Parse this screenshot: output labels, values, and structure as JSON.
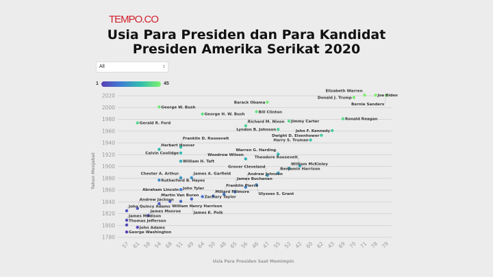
{
  "logo": {
    "text": "TEMPO.CO",
    "color": "#d0202a"
  },
  "filter": {
    "selected": "All"
  },
  "legend": {
    "min": "1",
    "max": "45",
    "colors": [
      "#5a3fb5",
      "#3f7fd4",
      "#33bfae",
      "#7ef26f"
    ]
  },
  "chart_data": {
    "type": "scatter",
    "title": "Usia Para Presiden dan Para Kandidat Presiden Amerika Serikat 2020",
    "title_lines": [
      "Usia Para Presiden dan Para Kandidat",
      "Presiden Amerika Serikat 2020"
    ],
    "xlabel": "Usia Para Presiden Saat Memimpin",
    "ylabel": "Tahun Menjabat",
    "x_categories": [
      "57",
      "61",
      "58",
      "54",
      "68",
      "51",
      "49",
      "64",
      "50",
      "48",
      "65",
      "56",
      "46",
      "47",
      "55",
      "52",
      "42",
      "60",
      "62",
      "43",
      "69",
      "70",
      "71",
      "78",
      "79"
    ],
    "y_ticks": [
      1780,
      1800,
      1820,
      1840,
      1860,
      1880,
      1900,
      1920,
      1940,
      1960,
      1980,
      2000,
      2020
    ],
    "ylim": [
      1780,
      2020
    ],
    "grid": true,
    "color_by": "order (1-45)",
    "points": [
      {
        "name": "George Washington",
        "year": 1789,
        "age": "57",
        "order": 1
      },
      {
        "name": "John Adams",
        "year": 1797,
        "age": "61",
        "order": 2
      },
      {
        "name": "Thomas Jefferson",
        "year": 1801,
        "age": "57",
        "order": 3
      },
      {
        "name": "James Madison",
        "year": 1809,
        "age": "57",
        "order": 4
      },
      {
        "name": "James Monroe",
        "year": 1817,
        "age": "58",
        "order": 5
      },
      {
        "name": "John Quincy Adams",
        "year": 1825,
        "age": "57",
        "order": 6
      },
      {
        "name": "Andrew Jackson",
        "year": 1829,
        "age": "61",
        "order": 7
      },
      {
        "name": "Martin Van Buren",
        "year": 1837,
        "age": "54",
        "order": 8
      },
      {
        "name": "William Henry Harrison",
        "year": 1841,
        "age": "68",
        "order": 9
      },
      {
        "name": "John Tyler",
        "year": 1841,
        "age": "51",
        "order": 10
      },
      {
        "name": "James K. Polk",
        "year": 1845,
        "age": "49",
        "order": 11
      },
      {
        "name": "Zachary Taylor",
        "year": 1849,
        "age": "64",
        "order": 12
      },
      {
        "name": "Millard Fillmore",
        "year": 1850,
        "age": "50",
        "order": 13
      },
      {
        "name": "Franklin Pierce",
        "year": 1853,
        "age": "48",
        "order": 14
      },
      {
        "name": "James Buchanan",
        "year": 1857,
        "age": "65",
        "order": 15
      },
      {
        "name": "Abraham Lincoln",
        "year": 1861,
        "age": "51",
        "order": 16
      },
      {
        "name": "Andrew Johnson",
        "year": 1865,
        "age": "56",
        "order": 17
      },
      {
        "name": "Ulysses S. Grant",
        "year": 1869,
        "age": "46",
        "order": 18
      },
      {
        "name": "Rutherford B. Hayes",
        "year": 1877,
        "age": "54",
        "order": 19
      },
      {
        "name": "James A. Garfield",
        "year": 1881,
        "age": "49",
        "order": 20
      },
      {
        "name": "Chester A. Arthur",
        "year": 1881,
        "age": "51",
        "order": 21
      },
      {
        "name": "Grover Cleveland",
        "year": 1885,
        "age": "47",
        "order": 22
      },
      {
        "name": "Benjamin Harrison",
        "year": 1889,
        "age": "55",
        "order": 23
      },
      {
        "name": "William McKinley",
        "year": 1897,
        "age": "52",
        "order": 24
      },
      {
        "name": "Theodore Roosevelt",
        "year": 1901,
        "age": "42",
        "order": 25
      },
      {
        "name": "William H. Taft",
        "year": 1909,
        "age": "51",
        "order": 26
      },
      {
        "name": "Woodrow Wilson",
        "year": 1913,
        "age": "56",
        "order": 27
      },
      {
        "name": "Warren G. Harding",
        "year": 1921,
        "age": "55",
        "order": 28
      },
      {
        "name": "Calvin Coolidge",
        "year": 1923,
        "age": "51",
        "order": 29
      },
      {
        "name": "Herbert Hoover",
        "year": 1929,
        "age": "54",
        "order": 30
      },
      {
        "name": "Franklin D. Roosevelt",
        "year": 1933,
        "age": "51",
        "order": 31
      },
      {
        "name": "Harry S. Truman",
        "year": 1945,
        "age": "60",
        "order": 32
      },
      {
        "name": "Dwight D. Eisenhower",
        "year": 1953,
        "age": "62",
        "order": 33
      },
      {
        "name": "John F. Kennedy",
        "year": 1961,
        "age": "43",
        "order": 34
      },
      {
        "name": "Lyndon B. Johnson",
        "year": 1963,
        "age": "55",
        "order": 35
      },
      {
        "name": "Richard M. Nixon",
        "year": 1969,
        "age": "56",
        "order": 36
      },
      {
        "name": "Gerald R. Ford",
        "year": 1974,
        "age": "61",
        "order": 37
      },
      {
        "name": "Jimmy Carter",
        "year": 1977,
        "age": "52",
        "order": 38
      },
      {
        "name": "Ronald Reagan",
        "year": 1981,
        "age": "69",
        "order": 39
      },
      {
        "name": "George H. W. Bush",
        "year": 1989,
        "age": "64",
        "order": 40
      },
      {
        "name": "Bill Clinton",
        "year": 1993,
        "age": "46",
        "order": 41
      },
      {
        "name": "George W. Bush",
        "year": 2001,
        "age": "54",
        "order": 42
      },
      {
        "name": "Barack Obama",
        "year": 2009,
        "age": "47",
        "order": 43
      },
      {
        "name": "Donald J. Trump",
        "year": 2017,
        "age": "70",
        "order": 44
      },
      {
        "name": "Elizabeth Warren",
        "year": 2021,
        "age": "71",
        "order": 45
      },
      {
        "name": "Joe Biden",
        "year": 2021,
        "age": "78",
        "order": 45
      },
      {
        "name": "Bernie Sanders",
        "year": 2021,
        "age": "79",
        "order": 45
      }
    ]
  }
}
